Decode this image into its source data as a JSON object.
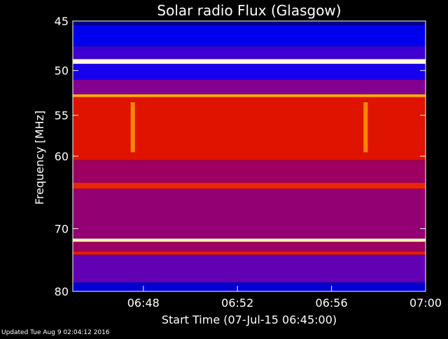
{
  "chart_data": {
    "type": "heatmap",
    "title": "Solar radio Flux (Glasgow)",
    "xlabel": "Start Time (07-Jul-15 06:45:00)",
    "ylabel": "Frequency [MHz]",
    "footer": "Updated Tue Aug  9 02:04:12 2016",
    "x_ticks": [
      {
        "t": 3,
        "label": "06:48"
      },
      {
        "t": 7,
        "label": "06:52"
      },
      {
        "t": 11,
        "label": "06:56"
      },
      {
        "t": 15,
        "label": "07:00"
      }
    ],
    "y_ticks": [
      {
        "f": 45,
        "label": "45"
      },
      {
        "f": 50,
        "label": "50"
      },
      {
        "f": 55,
        "label": "55"
      },
      {
        "f": 60,
        "label": "60"
      },
      {
        "f": 70,
        "label": "70"
      },
      {
        "f": 80,
        "label": "80"
      }
    ],
    "xlim": [
      0,
      15
    ],
    "ylim": [
      45,
      80
    ],
    "y_scale": "log",
    "colormap": [
      "#000060",
      "#0000ff",
      "#7a00a0",
      "#d00000",
      "#ff4000",
      "#ffd000",
      "#ffffff"
    ],
    "bands": [
      {
        "f0": 45.0,
        "f1": 45.4,
        "level": 0.05
      },
      {
        "f0": 45.4,
        "f1": 47.5,
        "level": 0.15
      },
      {
        "f0": 47.5,
        "f1": 48.8,
        "level": 0.25
      },
      {
        "f0": 48.8,
        "f1": 49.3,
        "level": 0.98
      },
      {
        "f0": 49.3,
        "f1": 51.0,
        "level": 0.2
      },
      {
        "f0": 51.0,
        "f1": 52.6,
        "level": 0.35
      },
      {
        "f0": 52.6,
        "f1": 52.9,
        "level": 0.8
      },
      {
        "f0": 52.9,
        "f1": 60.5,
        "level": 0.55
      },
      {
        "f0": 60.5,
        "f1": 63.5,
        "level": 0.4
      },
      {
        "f0": 63.5,
        "f1": 64.3,
        "level": 0.6
      },
      {
        "f0": 64.3,
        "f1": 71.5,
        "level": 0.38
      },
      {
        "f0": 71.5,
        "f1": 72.0,
        "level": 0.95
      },
      {
        "f0": 72.0,
        "f1": 73.5,
        "level": 0.4
      },
      {
        "f0": 73.5,
        "f1": 74.0,
        "level": 0.58
      },
      {
        "f0": 74.0,
        "f1": 78.5,
        "level": 0.3
      },
      {
        "f0": 78.5,
        "f1": 80.0,
        "level": 0.12
      }
    ],
    "events": [
      {
        "t": 2.55,
        "f0": 53.5,
        "f1": 59.5,
        "level": 0.75
      },
      {
        "t": 12.45,
        "f0": 53.5,
        "f1": 59.5,
        "level": 0.75
      }
    ],
    "grid": false,
    "legend": "none"
  }
}
